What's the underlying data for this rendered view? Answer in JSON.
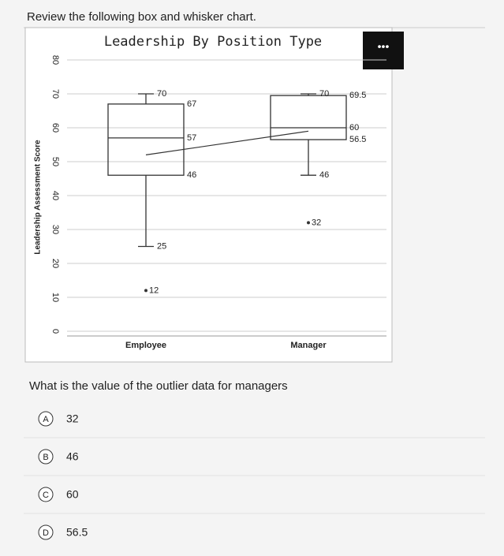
{
  "prompt": "Review the following box and whisker chart.",
  "chart_data": {
    "type": "box",
    "title": "Leadership By Position Type",
    "y_label": "Leadership Assessment Score",
    "categories": [
      "Employee",
      "Manager"
    ],
    "boxes": [
      {
        "low": 25,
        "q1": 46,
        "median": 57,
        "q3": 67,
        "high": 70,
        "outliers": [
          12
        ]
      },
      {
        "low": 46,
        "q1": 56.5,
        "median": 60,
        "q3": 69.5,
        "high": 70,
        "outliers": [
          32
        ]
      }
    ],
    "means": [
      52,
      59
    ],
    "ylim": [
      0,
      80
    ],
    "yticks": [
      0,
      10,
      20,
      30,
      40,
      50,
      60,
      70,
      80
    ],
    "grid": true,
    "color": "#333333"
  },
  "question": "What is the value of the outlier data for managers",
  "options": [
    {
      "letter": "A",
      "text": "32"
    },
    {
      "letter": "B",
      "text": "46"
    },
    {
      "letter": "C",
      "text": "60"
    },
    {
      "letter": "D",
      "text": "56.5"
    }
  ]
}
